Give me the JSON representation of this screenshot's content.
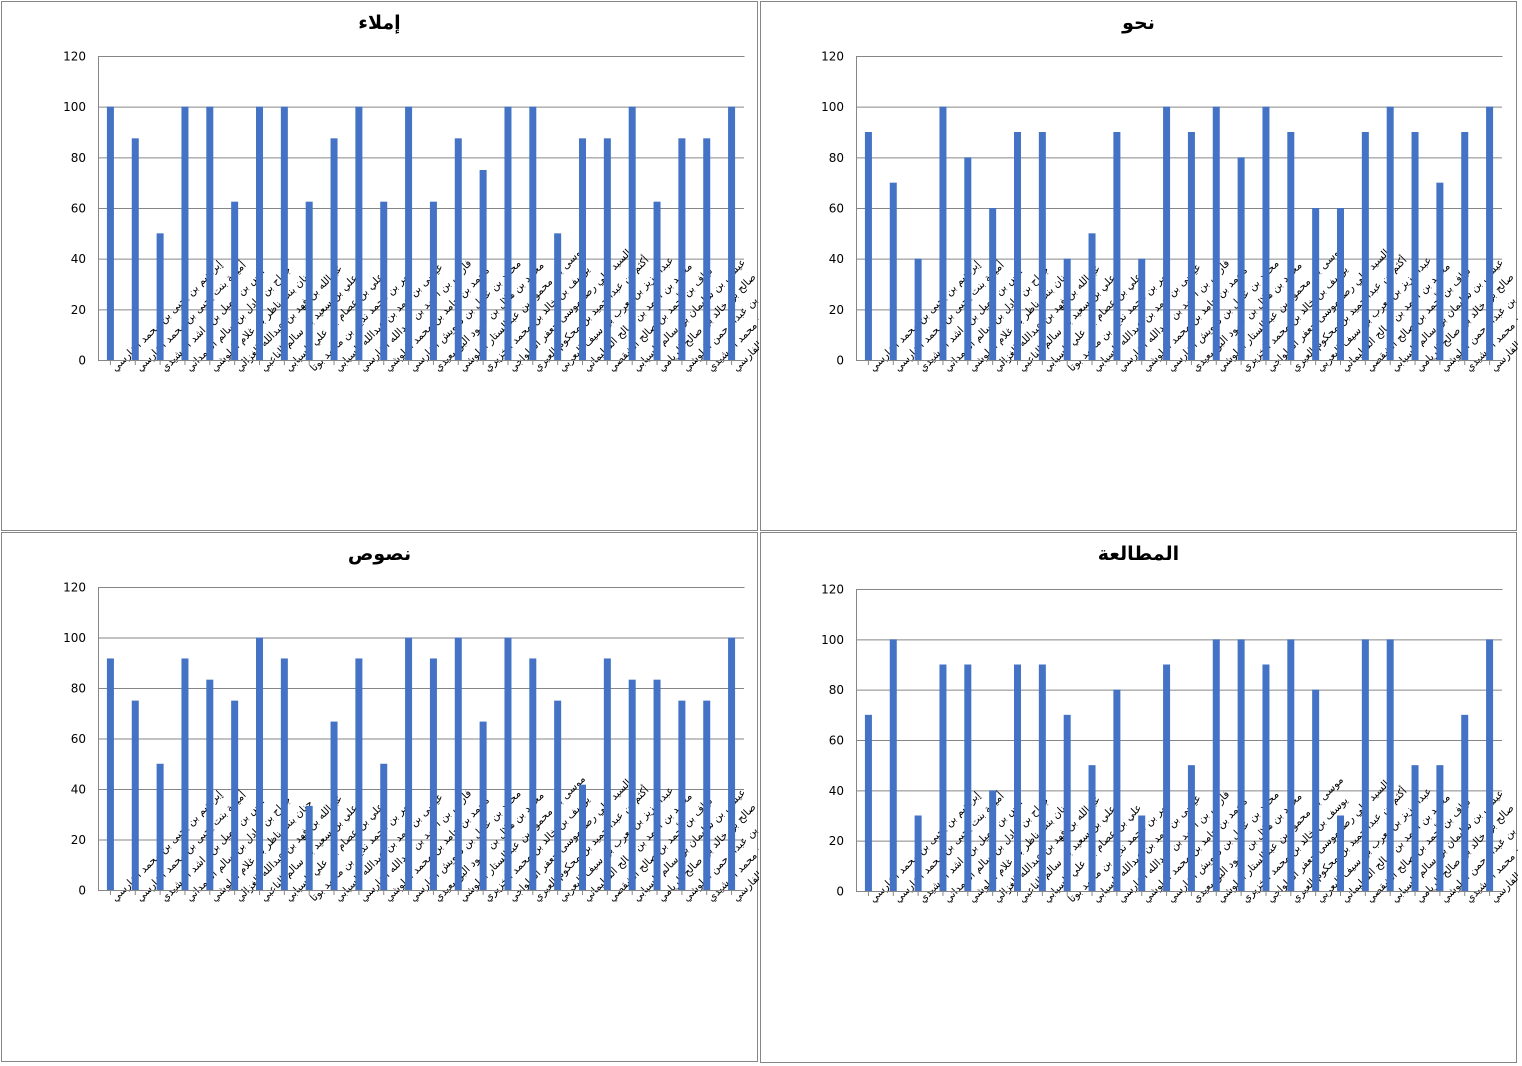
{
  "colors": {
    "bar": "#4472C4",
    "grid": "#868686",
    "border": "#868686"
  },
  "students": [
    "إبراهيم بن يحيى بن محمد الفارسي",
    "أميمة بنت يحيى بن محمد الفارسي",
    "أنس بن جميل بن راشد الرشيدي",
    "جراح بن عادل بن سالم الحمداني",
    "حنان بنت ناظر بن غلام البلوشي",
    "عبدالله بن فهد بن عبدالله الغزالي",
    "علي بن سعيد بن سالم الناعبي",
    "علي بن عصام بن علي السيابي",
    "عمر بن محمد نديم بن محمد بوتا",
    "عيسى بن حمد بن عبدالله السيابي",
    "فارس بن أحمد بن عبدالله الفارسي",
    "محمد بن حامد بن محمد البلوشي",
    "محمد بن عادل بن درويش الفارسي",
    "محمد بن هلال بن حمود البوسعيدي",
    "موسى بن محمود بن عبدالستار البلوشي",
    "يوسف بن خالد بن محمد الخزيري",
    "السيد علي رضا موسى جعفر الحلواجي",
    "أكثم بن عبدالحميد بن محكوم العبري",
    "عبدالعزيز بن يعرب بن سيف اليعربي",
    "محمد بن أحمد بن صالح السليماني",
    "نواف بن أحمد بن صالح الشقصي",
    "عيسى بن سليمان بن سالم السيابي",
    "صالح بن خالد بن صالح الريامي",
    "عبدالرحمن بن حسين بن عبدالرحمن البلوشي",
    "أحمد محمد الرشيدي",
    "عيسى بن درويش بن عيسى الفارسي"
  ],
  "chart_data": [
    {
      "type": "bar",
      "title": "إملاء",
      "ylim": [
        0,
        120
      ],
      "yticks": [
        "0",
        "20",
        "40",
        "60",
        "80",
        "100",
        "120"
      ],
      "grid": true,
      "values": [
        100,
        87.5,
        50,
        100,
        100,
        62.5,
        100,
        100,
        62.5,
        87.5,
        100,
        62.5,
        100,
        62.5,
        87.5,
        75,
        100,
        100,
        50,
        87.5,
        87.5,
        100,
        62.5,
        87.5,
        87.5,
        100
      ]
    },
    {
      "type": "bar",
      "title": "نحو",
      "ylim": [
        0,
        120
      ],
      "yticks": [
        "0",
        "20",
        "40",
        "60",
        "80",
        "100",
        "120"
      ],
      "grid": true,
      "values": [
        90,
        70,
        40,
        100,
        80,
        60,
        90,
        90,
        40,
        50,
        90,
        40,
        100,
        90,
        100,
        80,
        100,
        90,
        60,
        60,
        90,
        100,
        90,
        70,
        90,
        100
      ]
    },
    {
      "type": "bar",
      "title": "نصوص",
      "ylim": [
        0,
        120
      ],
      "yticks": [
        "0",
        "20",
        "40",
        "60",
        "80",
        "100",
        "120"
      ],
      "grid": true,
      "values": [
        91.7,
        75,
        50,
        91.7,
        83.3,
        75,
        100,
        91.7,
        33.3,
        66.7,
        91.7,
        50,
        100,
        91.7,
        100,
        66.7,
        100,
        91.7,
        75,
        41.7,
        91.7,
        83.3,
        83.3,
        75,
        75,
        100
      ]
    },
    {
      "type": "bar",
      "title": "المطالعة",
      "ylim": [
        0,
        120
      ],
      "yticks": [
        "0",
        "20",
        "40",
        "60",
        "80",
        "100",
        "120"
      ],
      "grid": true,
      "values": [
        70,
        100,
        30,
        90,
        90,
        40,
        90,
        90,
        70,
        50,
        80,
        30,
        90,
        50,
        100,
        100,
        90,
        100,
        80,
        30,
        100,
        100,
        50,
        50,
        70,
        100
      ]
    }
  ]
}
